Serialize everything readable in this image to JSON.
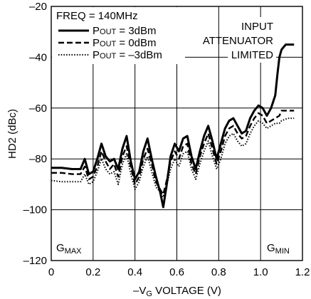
{
  "chart_data": {
    "type": "line",
    "title": "",
    "xlabel": {
      "prefix": "–V",
      "sub": "G",
      "suffix": " VOLTAGE (V)"
    },
    "ylabel": "HD2 (dBc)",
    "xlim": [
      0,
      1.2
    ],
    "ylim": [
      -120,
      -20
    ],
    "xticks": [
      0,
      0.2,
      0.4,
      0.6,
      0.8,
      1.0,
      1.2
    ],
    "xtick_labels": [
      "0",
      "0.2",
      "0.4",
      "0.6",
      "0.8",
      "1.0",
      "1.2"
    ],
    "yticks": [
      -120,
      -100,
      -80,
      -60,
      -40,
      -20
    ],
    "ytick_labels": [
      "–120",
      "–100",
      "–80",
      "–60",
      "–40",
      "–20"
    ],
    "grid": true,
    "legend": {
      "placement": "top-left",
      "header": "FREQ = 140MHz",
      "entries": [
        {
          "prefix": "P",
          "smallcaps": "OUT",
          "suffix": " = 3dBm"
        },
        {
          "prefix": "P",
          "smallcaps": "OUT",
          "suffix": " = 0dBm"
        },
        {
          "prefix": "P",
          "smallcaps": "OUT",
          "suffix": " = –3dBm"
        }
      ]
    },
    "annotations": {
      "input_limited": [
        "INPUT",
        "ATTENUATOR",
        "LIMITED"
      ],
      "gmax": {
        "main": "G",
        "sub": "MAX"
      },
      "gmin": {
        "main": "G",
        "sub": "MIN"
      }
    },
    "series": [
      {
        "name": "POUT = 3dBm",
        "style": "solid",
        "points": [
          [
            0,
            -83.5
          ],
          [
            0.05,
            -83.5
          ],
          [
            0.1,
            -84
          ],
          [
            0.14,
            -84
          ],
          [
            0.16,
            -80
          ],
          [
            0.18,
            -86
          ],
          [
            0.2,
            -85
          ],
          [
            0.22,
            -80
          ],
          [
            0.24,
            -74
          ],
          [
            0.26,
            -79
          ],
          [
            0.28,
            -81
          ],
          [
            0.3,
            -80
          ],
          [
            0.32,
            -84
          ],
          [
            0.34,
            -76
          ],
          [
            0.36,
            -71
          ],
          [
            0.38,
            -81
          ],
          [
            0.4,
            -88
          ],
          [
            0.42,
            -85
          ],
          [
            0.44,
            -77
          ],
          [
            0.46,
            -72
          ],
          [
            0.48,
            -80
          ],
          [
            0.5,
            -87
          ],
          [
            0.52,
            -93
          ],
          [
            0.535,
            -99
          ],
          [
            0.55,
            -91
          ],
          [
            0.57,
            -79
          ],
          [
            0.59,
            -74
          ],
          [
            0.61,
            -77
          ],
          [
            0.63,
            -72
          ],
          [
            0.65,
            -71
          ],
          [
            0.67,
            -79
          ],
          [
            0.69,
            -84
          ],
          [
            0.71,
            -77
          ],
          [
            0.73,
            -71
          ],
          [
            0.75,
            -67
          ],
          [
            0.77,
            -73
          ],
          [
            0.79,
            -80
          ],
          [
            0.81,
            -74
          ],
          [
            0.83,
            -68
          ],
          [
            0.85,
            -65
          ],
          [
            0.87,
            -64
          ],
          [
            0.89,
            -67
          ],
          [
            0.91,
            -70
          ],
          [
            0.93,
            -69
          ],
          [
            0.95,
            -64
          ],
          [
            0.97,
            -61
          ],
          [
            0.99,
            -59
          ],
          [
            1.01,
            -60
          ],
          [
            1.03,
            -63
          ],
          [
            1.05,
            -60
          ],
          [
            1.07,
            -55
          ],
          [
            1.08,
            -47
          ],
          [
            1.09,
            -40
          ],
          [
            1.1,
            -37
          ],
          [
            1.12,
            -35
          ],
          [
            1.14,
            -35
          ],
          [
            1.16,
            -35
          ]
        ]
      },
      {
        "name": "POUT = 0dBm",
        "style": "dashed",
        "points": [
          [
            0,
            -85.5
          ],
          [
            0.05,
            -85.5
          ],
          [
            0.1,
            -86
          ],
          [
            0.14,
            -86
          ],
          [
            0.16,
            -83
          ],
          [
            0.18,
            -88
          ],
          [
            0.2,
            -87
          ],
          [
            0.22,
            -83
          ],
          [
            0.24,
            -77
          ],
          [
            0.26,
            -81
          ],
          [
            0.28,
            -84
          ],
          [
            0.3,
            -82
          ],
          [
            0.32,
            -87
          ],
          [
            0.34,
            -79
          ],
          [
            0.36,
            -75
          ],
          [
            0.38,
            -83
          ],
          [
            0.4,
            -90
          ],
          [
            0.42,
            -87
          ],
          [
            0.44,
            -80
          ],
          [
            0.46,
            -76
          ],
          [
            0.48,
            -82
          ],
          [
            0.5,
            -89
          ],
          [
            0.52,
            -92
          ],
          [
            0.535,
            -94
          ],
          [
            0.55,
            -89
          ],
          [
            0.57,
            -81
          ],
          [
            0.59,
            -77
          ],
          [
            0.61,
            -80
          ],
          [
            0.63,
            -75
          ],
          [
            0.65,
            -74
          ],
          [
            0.67,
            -82
          ],
          [
            0.69,
            -86
          ],
          [
            0.71,
            -79
          ],
          [
            0.73,
            -74
          ],
          [
            0.75,
            -70
          ],
          [
            0.77,
            -76
          ],
          [
            0.79,
            -82
          ],
          [
            0.81,
            -77
          ],
          [
            0.83,
            -71
          ],
          [
            0.85,
            -68
          ],
          [
            0.87,
            -67
          ],
          [
            0.89,
            -70
          ],
          [
            0.91,
            -72
          ],
          [
            0.93,
            -71
          ],
          [
            0.95,
            -67
          ],
          [
            0.97,
            -64
          ],
          [
            0.99,
            -62
          ],
          [
            1.01,
            -63
          ],
          [
            1.03,
            -66
          ],
          [
            1.05,
            -65
          ],
          [
            1.07,
            -64
          ],
          [
            1.09,
            -63
          ],
          [
            1.1,
            -61
          ],
          [
            1.13,
            -61
          ],
          [
            1.16,
            -61
          ]
        ]
      },
      {
        "name": "POUT = –3dBm",
        "style": "dotted",
        "points": [
          [
            0,
            -88.5
          ],
          [
            0.05,
            -89
          ],
          [
            0.1,
            -89
          ],
          [
            0.14,
            -89
          ],
          [
            0.16,
            -86
          ],
          [
            0.18,
            -90
          ],
          [
            0.2,
            -89
          ],
          [
            0.22,
            -85
          ],
          [
            0.24,
            -80
          ],
          [
            0.26,
            -84
          ],
          [
            0.28,
            -86
          ],
          [
            0.3,
            -85
          ],
          [
            0.32,
            -90
          ],
          [
            0.34,
            -82
          ],
          [
            0.36,
            -78
          ],
          [
            0.38,
            -86
          ],
          [
            0.4,
            -92
          ],
          [
            0.42,
            -89
          ],
          [
            0.44,
            -83
          ],
          [
            0.46,
            -79
          ],
          [
            0.48,
            -85
          ],
          [
            0.5,
            -91
          ],
          [
            0.52,
            -93
          ],
          [
            0.535,
            -95
          ],
          [
            0.55,
            -91
          ],
          [
            0.57,
            -84
          ],
          [
            0.59,
            -80
          ],
          [
            0.61,
            -83
          ],
          [
            0.63,
            -78
          ],
          [
            0.65,
            -77
          ],
          [
            0.67,
            -84
          ],
          [
            0.69,
            -88
          ],
          [
            0.71,
            -82
          ],
          [
            0.73,
            -77
          ],
          [
            0.75,
            -73
          ],
          [
            0.77,
            -79
          ],
          [
            0.79,
            -84
          ],
          [
            0.81,
            -80
          ],
          [
            0.83,
            -74
          ],
          [
            0.85,
            -71
          ],
          [
            0.87,
            -70
          ],
          [
            0.89,
            -73
          ],
          [
            0.91,
            -75
          ],
          [
            0.93,
            -74
          ],
          [
            0.95,
            -70
          ],
          [
            0.97,
            -67
          ],
          [
            0.99,
            -65
          ],
          [
            1.01,
            -66
          ],
          [
            1.03,
            -68
          ],
          [
            1.05,
            -67
          ],
          [
            1.07,
            -66
          ],
          [
            1.09,
            -66
          ],
          [
            1.1,
            -65
          ],
          [
            1.13,
            -64
          ],
          [
            1.16,
            -64
          ]
        ]
      }
    ]
  }
}
